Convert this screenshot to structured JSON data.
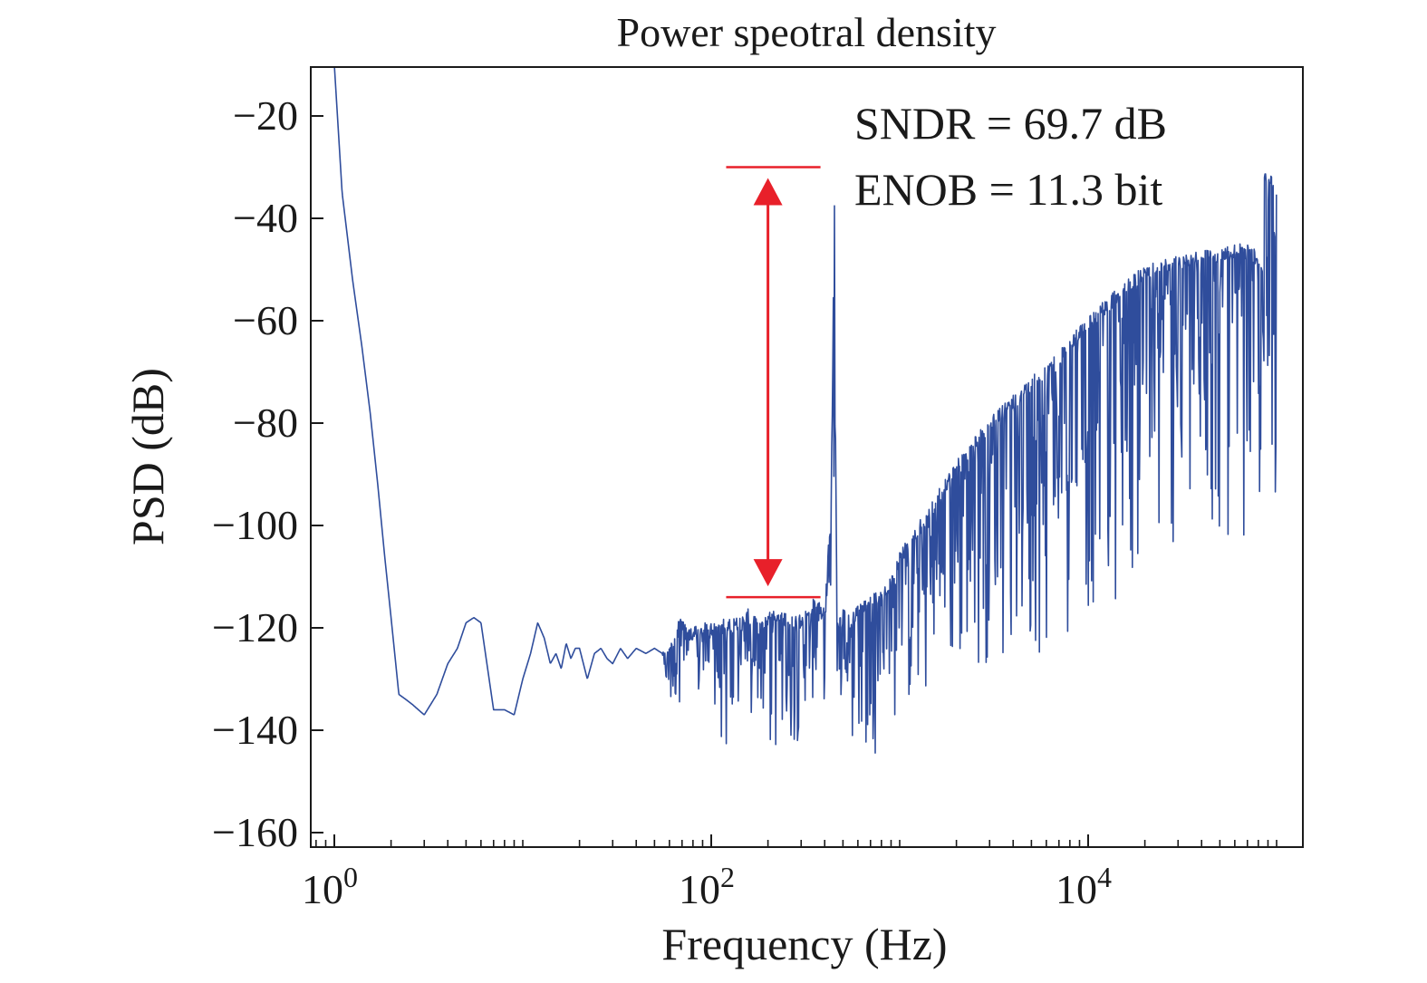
{
  "chart_data": {
    "type": "line",
    "title": "Power speotral density",
    "xlabel": "Frequency (Hz)",
    "ylabel": "PSD (dB)",
    "x_scale": "log",
    "xlim": [
      0.8,
      100000
    ],
    "ylim": [
      -162,
      -12
    ],
    "x_ticks": [
      {
        "value": 1,
        "base": "10",
        "exp": "0"
      },
      {
        "value": 100,
        "base": "10",
        "exp": "2"
      },
      {
        "value": 10000,
        "base": "10",
        "exp": "4"
      }
    ],
    "y_ticks": [
      {
        "value": -20,
        "label": "−20"
      },
      {
        "value": -40,
        "label": "−40"
      },
      {
        "value": -60,
        "label": "−60"
      },
      {
        "value": -80,
        "label": "−80"
      },
      {
        "value": -100,
        "label": "−100"
      },
      {
        "value": -120,
        "label": "−120"
      },
      {
        "value": -140,
        "label": "−140"
      },
      {
        "value": -160,
        "label": "−160"
      }
    ],
    "grid": false,
    "series": [
      {
        "color": "#2f4d9c",
        "x": [
          1,
          1.1,
          1.25,
          1.4,
          1.55,
          1.7,
          1.85,
          2,
          2.2,
          2.4,
          2.6,
          3,
          3.5,
          4,
          4.5,
          5,
          5.5,
          6,
          7,
          8,
          9,
          10,
          11,
          12,
          13,
          14,
          15,
          16,
          17,
          18,
          19,
          20,
          22,
          24,
          26,
          28,
          30,
          33,
          36,
          40,
          45,
          50,
          55,
          60,
          70,
          80,
          90,
          100,
          120,
          140,
          160,
          180,
          200,
          230,
          260,
          300,
          330,
          360,
          400,
          430,
          440,
          450,
          455,
          460,
          465,
          470,
          480,
          500,
          550,
          600,
          700,
          800,
          900,
          1000,
          1500,
          2000,
          3000,
          5000,
          7000,
          10000,
          15000,
          20000,
          30000,
          40000,
          50000,
          60000,
          70000,
          75000,
          80000,
          82000,
          84000,
          86000,
          90000,
          95000,
          100000
        ],
        "upper": [
          -10,
          -35,
          -52,
          -65,
          -78,
          -92,
          -106,
          -118,
          -133,
          -134,
          -135,
          -137,
          -133,
          -127,
          -124,
          -119,
          -118,
          -119,
          -136,
          -136,
          -137,
          -130,
          -125,
          -119,
          -122,
          -127,
          -125,
          -128,
          -123,
          -126,
          -124,
          -124,
          -130,
          -125,
          -124,
          -126,
          -127,
          -124,
          -126,
          -124,
          -125,
          -124,
          -125,
          -123,
          -117,
          -120,
          -119,
          -119,
          -118,
          -118,
          -116,
          -119,
          -117,
          -116,
          -118,
          -117,
          -115,
          -114,
          -116,
          -96,
          -74,
          -30,
          -74,
          -96,
          -116,
          -118,
          -117,
          -116,
          -118,
          -115,
          -113,
          -113,
          -110,
          -105,
          -95,
          -87,
          -79,
          -71,
          -66,
          -59,
          -53,
          -49,
          -47,
          -46,
          -46,
          -45,
          -45,
          -46,
          -46,
          -47,
          -48,
          -29,
          -31,
          -32,
          -33
        ],
        "lower": [
          -10,
          -35,
          -52,
          -65,
          -78,
          -92,
          -106,
          -118,
          -133,
          -134,
          -135,
          -137,
          -133,
          -127,
          -124,
          -119,
          -118,
          -119,
          -136,
          -136,
          -137,
          -130,
          -125,
          -119,
          -122,
          -127,
          -125,
          -128,
          -123,
          -126,
          -124,
          -124,
          -130,
          -125,
          -124,
          -126,
          -127,
          -124,
          -126,
          -124,
          -125,
          -124,
          -125,
          -140,
          -134,
          -136,
          -138,
          -133,
          -150,
          -140,
          -147,
          -135,
          -150,
          -145,
          -150,
          -140,
          -133,
          -138,
          -135,
          -120,
          -110,
          -100,
          -110,
          -120,
          -130,
          -135,
          -140,
          -138,
          -140,
          -152,
          -147,
          -142,
          -140,
          -140,
          -138,
          -132,
          -128,
          -132,
          -125,
          -120,
          -116,
          -111,
          -108,
          -107,
          -107,
          -106,
          -105,
          -104,
          -104,
          -103,
          -104,
          -104,
          -104,
          -104,
          -103
        ]
      }
    ],
    "annotations": {
      "sndr": "SNDR = 69.7 dB",
      "enob": "ENOB = 11.3 bit",
      "arrow": {
        "x": 200,
        "top_y": -30,
        "bottom_y": -114,
        "bar_x_from": 120,
        "bar_x_to": 380,
        "color": "#e8202a"
      }
    }
  }
}
